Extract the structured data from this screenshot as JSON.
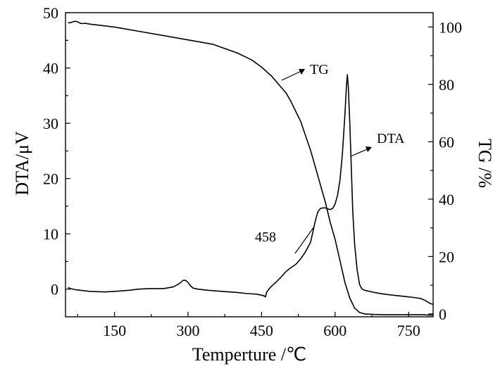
{
  "chart_data": {
    "type": "line",
    "xlabel": "Temperture /℃",
    "ylabel_left": "DTA/μV",
    "ylabel_right": "TG /%",
    "xlim": [
      50,
      800
    ],
    "ylim_left": [
      -5,
      50
    ],
    "ylim_right": [
      -1,
      105
    ],
    "x_ticks": [
      150,
      300,
      450,
      600,
      750
    ],
    "y_left_ticks": [
      0,
      10,
      20,
      30,
      40,
      50
    ],
    "y_right_ticks": [
      0,
      20,
      40,
      60,
      80,
      100
    ],
    "grid": false,
    "annotations": [
      {
        "text": "TG",
        "series": "TG",
        "at": [
          520,
          90
        ]
      },
      {
        "text": "DTA",
        "series": "DTA",
        "at": [
          665,
          60
        ]
      },
      {
        "text": "458",
        "at": [
          458,
          10
        ]
      }
    ],
    "series": [
      {
        "key": "TG",
        "axis": "right",
        "x": [
          55,
          60,
          65,
          70,
          75,
          80,
          85,
          90,
          100,
          110,
          150,
          200,
          250,
          300,
          350,
          400,
          430,
          450,
          470,
          490,
          500,
          510,
          520,
          530,
          540,
          550,
          560,
          570,
          580,
          590,
          600,
          610,
          620,
          630,
          640,
          650,
          660,
          680,
          700,
          720,
          740,
          760,
          780,
          790,
          800
        ],
        "y": [
          101.5,
          101.5,
          101.8,
          102,
          101.8,
          101.3,
          101.2,
          101.3,
          101,
          100.8,
          100,
          98.5,
          97,
          95.5,
          94,
          91,
          88.5,
          86,
          83,
          79,
          77,
          74,
          70.5,
          67,
          62,
          57,
          51,
          45,
          39,
          32,
          26,
          18.5,
          11,
          5.5,
          2,
          0.5,
          0,
          -0.2,
          -0.3,
          -0.3,
          -0.3,
          -0.3,
          -0.3,
          -0.4,
          -0.4
        ]
      },
      {
        "key": "DTA",
        "axis": "left",
        "x": [
          55,
          60,
          70,
          80,
          100,
          130,
          150,
          180,
          200,
          220,
          250,
          270,
          280,
          285,
          290,
          295,
          300,
          305,
          310,
          320,
          340,
          370,
          400,
          420,
          440,
          455,
          458,
          460,
          465,
          470,
          480,
          490,
          500,
          510,
          520,
          530,
          540,
          550,
          555,
          560,
          565,
          570,
          575,
          580,
          585,
          590,
          595,
          600,
          605,
          610,
          615,
          620,
          623,
          625,
          627,
          630,
          633,
          636,
          640,
          645,
          650,
          655,
          660,
          680,
          700,
          720,
          740,
          760,
          775,
          785,
          790,
          800
        ],
        "y": [
          0.3,
          0.1,
          -0.1,
          -0.2,
          -0.4,
          -0.5,
          -0.4,
          -0.2,
          0,
          0.1,
          0.1,
          0.4,
          0.9,
          1.2,
          1.6,
          1.6,
          1.2,
          0.6,
          0.2,
          0,
          -0.2,
          -0.4,
          -0.6,
          -0.8,
          -0.9,
          -1.2,
          -1.4,
          -0.6,
          0,
          0.5,
          1.3,
          2.2,
          3.2,
          3.9,
          4.5,
          5.5,
          6.8,
          8.5,
          10.5,
          12.5,
          14,
          14.6,
          14.7,
          14.7,
          14.5,
          14.4,
          14.6,
          15.4,
          17,
          19.8,
          24.5,
          31.5,
          36.5,
          38.8,
          36.5,
          30,
          22,
          14,
          8,
          3.5,
          0.8,
          0,
          -0.2,
          -0.6,
          -0.9,
          -1.1,
          -1.3,
          -1.5,
          -1.7,
          -2.1,
          -2.4,
          -2.8
        ]
      }
    ]
  }
}
